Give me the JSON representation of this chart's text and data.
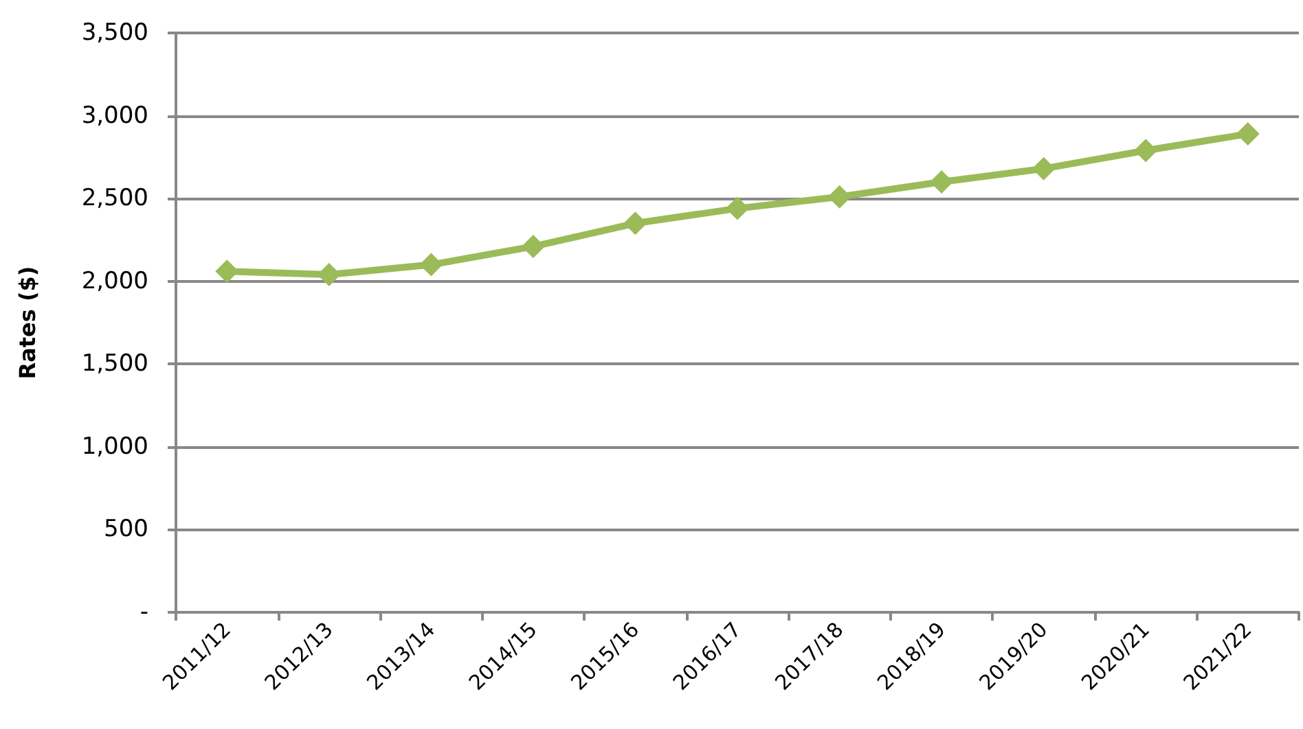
{
  "chart_data": {
    "type": "line",
    "ylabel": "Rates ($)",
    "categories": [
      "2011/12",
      "2012/13",
      "2013/14",
      "2014/15",
      "2015/16",
      "2016/17",
      "2017/18",
      "2018/19",
      "2019/20",
      "2020/21",
      "2021/22"
    ],
    "values": [
      2060,
      2040,
      2100,
      2210,
      2350,
      2440,
      2510,
      2600,
      2680,
      2790,
      2890
    ],
    "color": "#9bbb59",
    "marker": "diamond",
    "line_style": "solid",
    "ylim": [
      0,
      3500
    ],
    "yticks": [
      {
        "value": 0,
        "label": "-"
      },
      500,
      {
        "value": 1000,
        "label": "1,000"
      },
      {
        "value": 1500,
        "label": "1,500"
      },
      {
        "value": 2000,
        "label": "2,000"
      },
      {
        "value": 2500,
        "label": "2,500"
      },
      {
        "value": 3000,
        "label": "3,000"
      },
      {
        "value": 3500,
        "label": "3,500"
      }
    ],
    "grid": "y"
  }
}
